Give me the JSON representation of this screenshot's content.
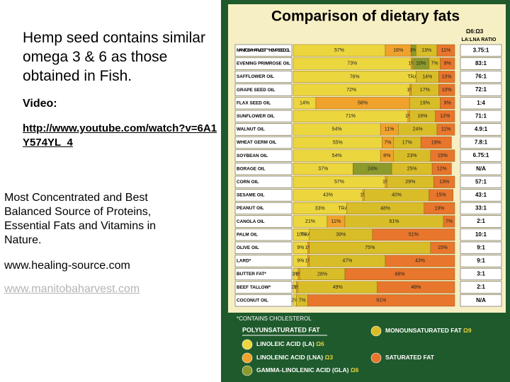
{
  "slide": {
    "heading": "Hemp seed contains similar omega 3 & 6 as those obtained in Fish.",
    "video_label": "Video:",
    "video_link": "http://www.youtube.com/watch?v=6A1Y574YL_4",
    "description": "Most Concentrated and Best Balanced Source of Proteins, Essential Fats and Vitamins in Nature.",
    "site_1": "www.healing-source.com",
    "site_2": "www.manitobaharvest.com"
  },
  "chart_data": {
    "type": "stacked_bar_horizontal",
    "title": "Comparison of dietary fats",
    "ratio_header": "Ω6:Ω3",
    "ratio_subheader": "LA:LNA RATIO",
    "footnote": "*CONTAINS CHOLESTEROL",
    "legend_header": "POLYUNSATURATED FAT",
    "xlim": [
      0,
      100
    ],
    "categories": [
      "MANITOBA HARVEST™ HEMP SEED OIL",
      "EVENING PRIMROSE OIL",
      "SAFFLOWER OIL",
      "GRAPE SEED OIL",
      "FLAX SEED OIL",
      "SUNFLOWER OIL",
      "WALNUT OIL",
      "WHEAT GERM OIL",
      "SOYBEAN OIL",
      "BORAGE OIL",
      "CORN OIL",
      "SESAME OIL",
      "PEANUT OIL",
      "CANOLA OIL",
      "PALM OIL",
      "OLIVE OIL",
      "LARD*",
      "BUTTER FAT*",
      "BEEF TALLOW*",
      "COCONUT OIL"
    ],
    "ratios": [
      "3.75:1",
      "83:1",
      "76:1",
      "72:1",
      "1:4",
      "71:1",
      "4.9:1",
      "7.8:1",
      "6.75:1",
      "N/A",
      "57:1",
      "43:1",
      "33:1",
      "2:1",
      "10:1",
      "9:1",
      "9:1",
      "3:1",
      "2:1",
      "N/A"
    ],
    "series": [
      {
        "name": "LINOLEIC ACID (LA)",
        "omega": "Ω6",
        "color": "#ecd63e",
        "values": [
          57,
          73,
          76,
          72,
          14,
          71,
          54,
          55,
          54,
          37,
          57,
          43,
          33,
          21,
          10,
          9,
          9,
          3,
          2,
          2
        ],
        "value_labels": [
          "57%",
          "73%",
          "76%",
          "72%",
          "14%",
          "71%",
          "54%",
          "55%",
          "54%",
          "37%",
          "57%",
          "43%",
          "33%",
          "21%",
          "10%",
          "9%",
          "9%",
          "3%",
          "2%",
          "2%"
        ]
      },
      {
        "name": "LINOLENIC ACID (LNA)",
        "omega": "Ω3",
        "color": "#f0a22c",
        "values": [
          16,
          1,
          null,
          1,
          58,
          1,
          11,
          7,
          8,
          null,
          1,
          1,
          null,
          11,
          null,
          1,
          1,
          1,
          1,
          null
        ],
        "value_labels": [
          "16%",
          "1%",
          "TRACE",
          "1%",
          "58%",
          "1%",
          "11%",
          "7%",
          "8%",
          null,
          "1%",
          "1%",
          "TRACE",
          "11%",
          "TRACE",
          "1%",
          "1%",
          "1%",
          "1%",
          null
        ]
      },
      {
        "name": "GAMMA-LINOLENIC ACID (GLA)",
        "omega": "Ω6",
        "color": "#8c9a2c",
        "values": [
          3,
          10,
          null,
          null,
          null,
          null,
          null,
          null,
          null,
          24,
          null,
          null,
          null,
          null,
          null,
          null,
          null,
          null,
          null,
          null
        ],
        "value_labels": [
          "3%",
          "10%",
          null,
          null,
          null,
          null,
          null,
          null,
          null,
          "24%",
          null,
          null,
          null,
          null,
          null,
          null,
          null,
          null,
          null,
          null
        ]
      },
      {
        "name": "MONOUNSATURATED FAT",
        "omega": "Ω9",
        "color": "#d9bd28",
        "values": [
          13,
          7,
          14,
          17,
          19,
          16,
          24,
          17,
          23,
          25,
          29,
          40,
          48,
          61,
          39,
          75,
          47,
          28,
          49,
          7
        ],
        "value_labels": [
          "13%",
          "7%",
          "14%",
          "17%",
          "19%",
          "16%",
          "24%",
          "17%",
          "23%",
          "25%",
          "29%",
          "40%",
          "48%",
          "61%",
          "39%",
          "75%",
          "47%",
          "28%",
          "49%",
          "7%"
        ]
      },
      {
        "name": "SATURATED FAT",
        "color": "#e8762c",
        "values": [
          11,
          9,
          10,
          10,
          9,
          12,
          11,
          19,
          15,
          12,
          13,
          15,
          19,
          7,
          51,
          15,
          43,
          68,
          48,
          91
        ],
        "value_labels": [
          "11%",
          "9%",
          "10%",
          "10%",
          "9%",
          "12%",
          "11%",
          "19%",
          "15%",
          "12%",
          "13%",
          "15%",
          "19%",
          "7%",
          "51%",
          "15%",
          "43%",
          "68%",
          "48%",
          "91%"
        ]
      }
    ]
  }
}
